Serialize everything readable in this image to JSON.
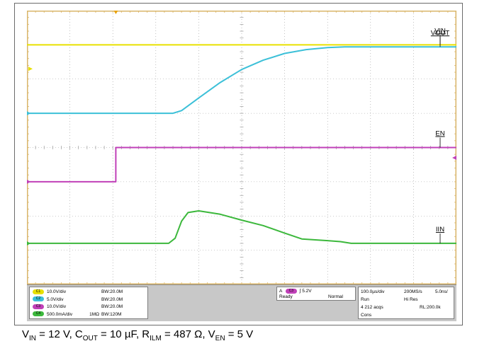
{
  "colors": {
    "screen_bg": "#ffffff",
    "grid": "#9a9a9a",
    "frame": "#d9b56a",
    "ch1": "#e8e000",
    "ch2": "#3cc0d8",
    "ch3": "#c040b8",
    "ch4": "#3cb83c",
    "trigger_marker": "#e8a000"
  },
  "chart_data": {
    "type": "line",
    "x_divisions": 10,
    "y_divisions": 8,
    "grid": true,
    "series": [
      {
        "name": "VIN",
        "color": "#e8e000",
        "points": [
          [
            0,
            7.0
          ],
          [
            10,
            7.0
          ]
        ]
      },
      {
        "name": "VOUT",
        "color": "#3cc0d8",
        "points": [
          [
            0,
            5.0
          ],
          [
            3.4,
            5.0
          ],
          [
            3.6,
            5.08
          ],
          [
            4.0,
            5.45
          ],
          [
            4.5,
            5.9
          ],
          [
            5.0,
            6.28
          ],
          [
            5.5,
            6.55
          ],
          [
            6.0,
            6.75
          ],
          [
            6.5,
            6.86
          ],
          [
            7.0,
            6.92
          ],
          [
            7.4,
            6.94
          ],
          [
            10,
            6.94
          ]
        ]
      },
      {
        "name": "EN",
        "color": "#c040b8",
        "points": [
          [
            0,
            3.0
          ],
          [
            2.07,
            3.0
          ],
          [
            2.07,
            4.0
          ],
          [
            10,
            4.0
          ]
        ]
      },
      {
        "name": "IIN",
        "color": "#3cb83c",
        "points": [
          [
            0,
            1.2
          ],
          [
            3.3,
            1.2
          ],
          [
            3.45,
            1.35
          ],
          [
            3.6,
            1.85
          ],
          [
            3.75,
            2.1
          ],
          [
            4.0,
            2.15
          ],
          [
            4.5,
            2.05
          ],
          [
            5.0,
            1.88
          ],
          [
            5.5,
            1.72
          ],
          [
            6.0,
            1.5
          ],
          [
            6.4,
            1.33
          ],
          [
            7.0,
            1.28
          ],
          [
            7.3,
            1.25
          ],
          [
            7.55,
            1.2
          ],
          [
            10,
            1.2
          ]
        ]
      }
    ],
    "trace_labels": [
      "VIN",
      "VOUT",
      "EN",
      "IIN"
    ]
  },
  "status": {
    "channels": [
      {
        "badge": "C1",
        "scale": "10.0V/div",
        "coupling": "",
        "bw": "BW:20.0M",
        "color": "#e8e000"
      },
      {
        "badge": "C2",
        "scale": "5.0V/div",
        "coupling": "",
        "bw": "BW:20.0M",
        "color": "#3cc0d8"
      },
      {
        "badge": "C3",
        "scale": "10.0V/div",
        "coupling": "",
        "bw": "BW:20.0M",
        "color": "#c040b8"
      },
      {
        "badge": "C4",
        "scale": "500.0mA/div",
        "coupling": "1MΩ",
        "bw": "BW:120M",
        "color": "#3cb83c"
      }
    ],
    "trigger": {
      "mode_letter": "A",
      "badge": "C3",
      "slope": "∫",
      "level": "5.2V",
      "state": "Ready",
      "mode": "Normal"
    },
    "timebase": {
      "scale": "100.0µs/div",
      "rate": "200MS/s",
      "resolution": "5.0ns/",
      "run": "Run",
      "acq_mode": "Hi Res",
      "acqs": "4 212 acqs",
      "record": "RL:200.0k",
      "cons": "Cons"
    }
  },
  "caption": {
    "parts": [
      {
        "t": "V"
      },
      {
        "s": "IN"
      },
      {
        "t": " = 12 V, C"
      },
      {
        "s": "OUT"
      },
      {
        "t": " = 10 µF, R"
      },
      {
        "s": "ILM"
      },
      {
        "t": " = 487 Ω, V"
      },
      {
        "s": "EN"
      },
      {
        "t": " = 5 V"
      }
    ]
  }
}
